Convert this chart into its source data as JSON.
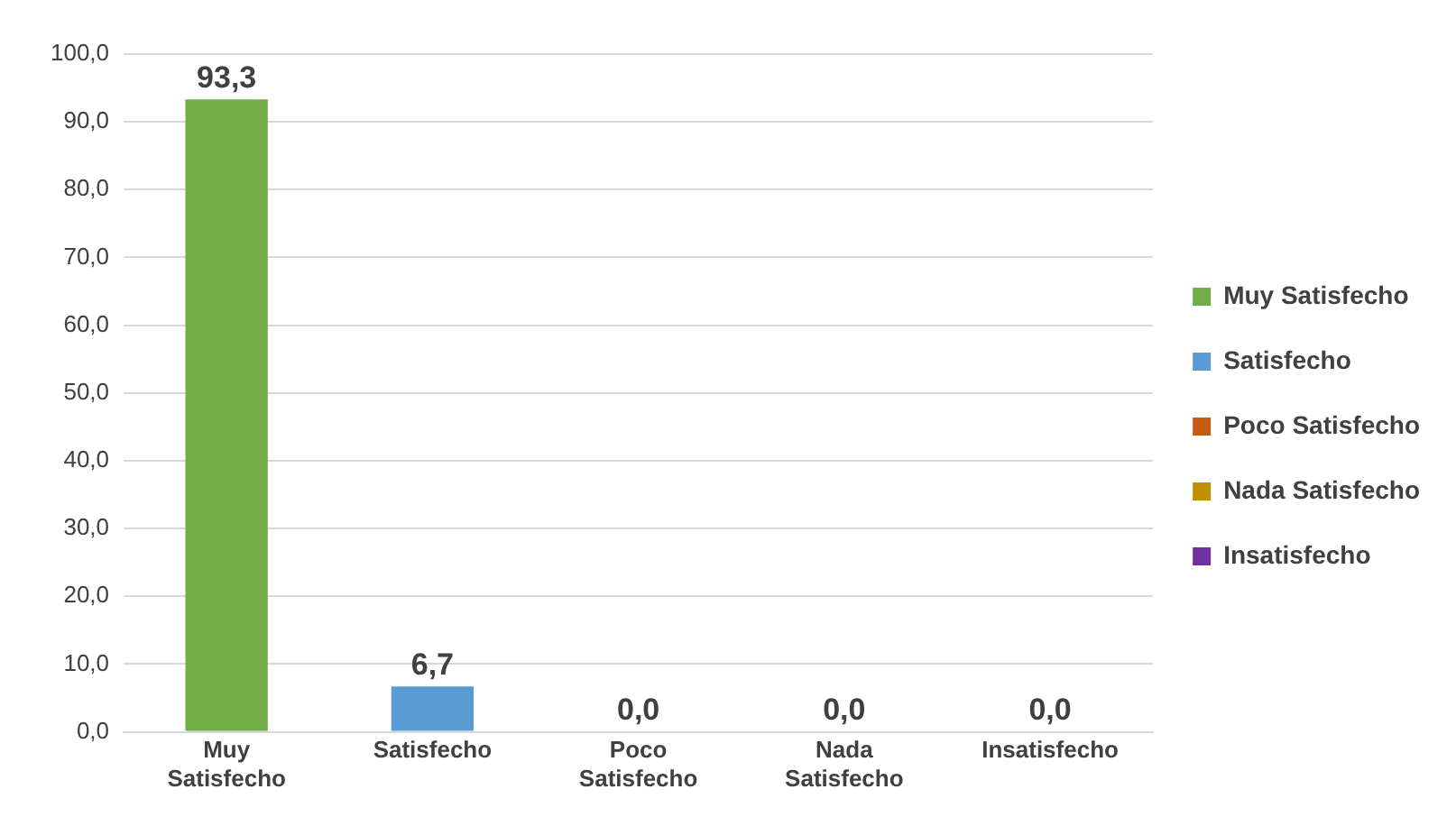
{
  "chart_data": {
    "type": "bar",
    "categories": [
      "Muy Satisfecho",
      "Satisfecho",
      "Poco Satisfecho",
      "Nada Satisfecho",
      "Insatisfecho"
    ],
    "series": [
      {
        "name": "Muy Satisfecho",
        "color": "#70ad47",
        "values": [
          93.3,
          null,
          null,
          null,
          null
        ],
        "value_labels": [
          "93,3",
          null,
          null,
          null,
          null
        ]
      },
      {
        "name": "Satisfecho",
        "color": "#5b9bd5",
        "values": [
          null,
          6.7,
          null,
          null,
          null
        ],
        "value_labels": [
          null,
          "6,7",
          null,
          null,
          null
        ]
      },
      {
        "name": "Poco Satisfecho",
        "color": "#c55a11",
        "values": [
          null,
          null,
          0.0,
          null,
          null
        ],
        "value_labels": [
          null,
          null,
          "0,0",
          null,
          null
        ]
      },
      {
        "name": "Nada Satisfecho",
        "color": "#bf9000",
        "values": [
          null,
          null,
          null,
          0.0,
          null
        ],
        "value_labels": [
          null,
          null,
          null,
          "0,0",
          null
        ]
      },
      {
        "name": "Insatisfecho",
        "color": "#7030a0",
        "values": [
          null,
          null,
          null,
          null,
          0.0
        ],
        "value_labels": [
          null,
          null,
          null,
          null,
          "0,0"
        ]
      }
    ],
    "ylim": [
      0,
      100
    ],
    "yticks": [
      {
        "value": 0,
        "label": "0,0"
      },
      {
        "value": 10,
        "label": "10,0"
      },
      {
        "value": 20,
        "label": "20,0"
      },
      {
        "value": 30,
        "label": "30,0"
      },
      {
        "value": 40,
        "label": "40,0"
      },
      {
        "value": 50,
        "label": "50,0"
      },
      {
        "value": 60,
        "label": "60,0"
      },
      {
        "value": 70,
        "label": "70,0"
      },
      {
        "value": 80,
        "label": "80,0"
      },
      {
        "value": 90,
        "label": "90,0"
      },
      {
        "value": 100,
        "label": "100,0"
      }
    ],
    "grid": "y",
    "legend": "right"
  }
}
